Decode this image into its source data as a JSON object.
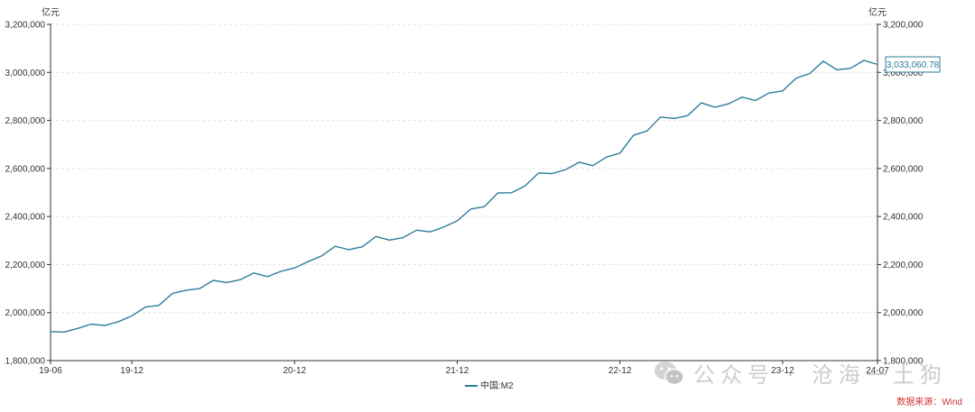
{
  "chart_data": {
    "type": "line",
    "unit_left": "亿元",
    "unit_right": "亿元",
    "ylim": [
      1800000,
      3200000
    ],
    "y_ticks": [
      "1,800,000",
      "2,000,000",
      "2,200,000",
      "2,400,000",
      "2,600,000",
      "2,800,000",
      "3,000,000",
      "3,200,000"
    ],
    "y_tick_values": [
      1800000,
      2000000,
      2200000,
      2400000,
      2600000,
      2800000,
      3000000,
      3200000
    ],
    "x_ticks": [
      "19-06",
      "19-12",
      "20-12",
      "21-12",
      "22-12",
      "23-12",
      "24-07"
    ],
    "x_tick_index": [
      0,
      6,
      18,
      30,
      42,
      54,
      61
    ],
    "grid": true,
    "legend_position": "bottom-center",
    "series": [
      {
        "name": "中国:M2",
        "color": "#2e7d9a",
        "x": [
          "19-06",
          "19-07",
          "19-08",
          "19-09",
          "19-10",
          "19-11",
          "19-12",
          "20-01",
          "20-02",
          "20-03",
          "20-04",
          "20-05",
          "20-06",
          "20-07",
          "20-08",
          "20-09",
          "20-10",
          "20-11",
          "20-12",
          "21-01",
          "21-02",
          "21-03",
          "21-04",
          "21-05",
          "21-06",
          "21-07",
          "21-08",
          "21-09",
          "21-10",
          "21-11",
          "21-12",
          "22-01",
          "22-02",
          "22-03",
          "22-04",
          "22-05",
          "22-06",
          "22-07",
          "22-08",
          "22-09",
          "22-10",
          "22-11",
          "22-12",
          "23-01",
          "23-02",
          "23-03",
          "23-04",
          "23-05",
          "23-06",
          "23-07",
          "23-08",
          "23-09",
          "23-10",
          "23-11",
          "23-12",
          "24-01",
          "24-02",
          "24-03",
          "24-04",
          "24-05",
          "24-06",
          "24-07"
        ],
        "values": [
          1921000,
          1919000,
          1934000,
          1952000,
          1946000,
          1962000,
          1986000,
          2023000,
          2030000,
          2080000,
          2093000,
          2100000,
          2134000,
          2125000,
          2137000,
          2165000,
          2150000,
          2172000,
          2186000,
          2212000,
          2236000,
          2276000,
          2262000,
          2274000,
          2317000,
          2302000,
          2312000,
          2343000,
          2336000,
          2356000,
          2382000,
          2431000,
          2441000,
          2498000,
          2499000,
          2527000,
          2581000,
          2579000,
          2595000,
          2626000,
          2612000,
          2647000,
          2664000,
          2738000,
          2756000,
          2814000,
          2808000,
          2820000,
          2873000,
          2855000,
          2869000,
          2897000,
          2883000,
          2914000,
          2923000,
          2976000,
          2995000,
          3047000,
          3011000,
          3017000,
          3050000,
          3033060.78
        ]
      }
    ],
    "tooltip": "3,033,060.78"
  },
  "watermark": "公众号 · 沧海一土狗",
  "source": "数据来源：Wind"
}
